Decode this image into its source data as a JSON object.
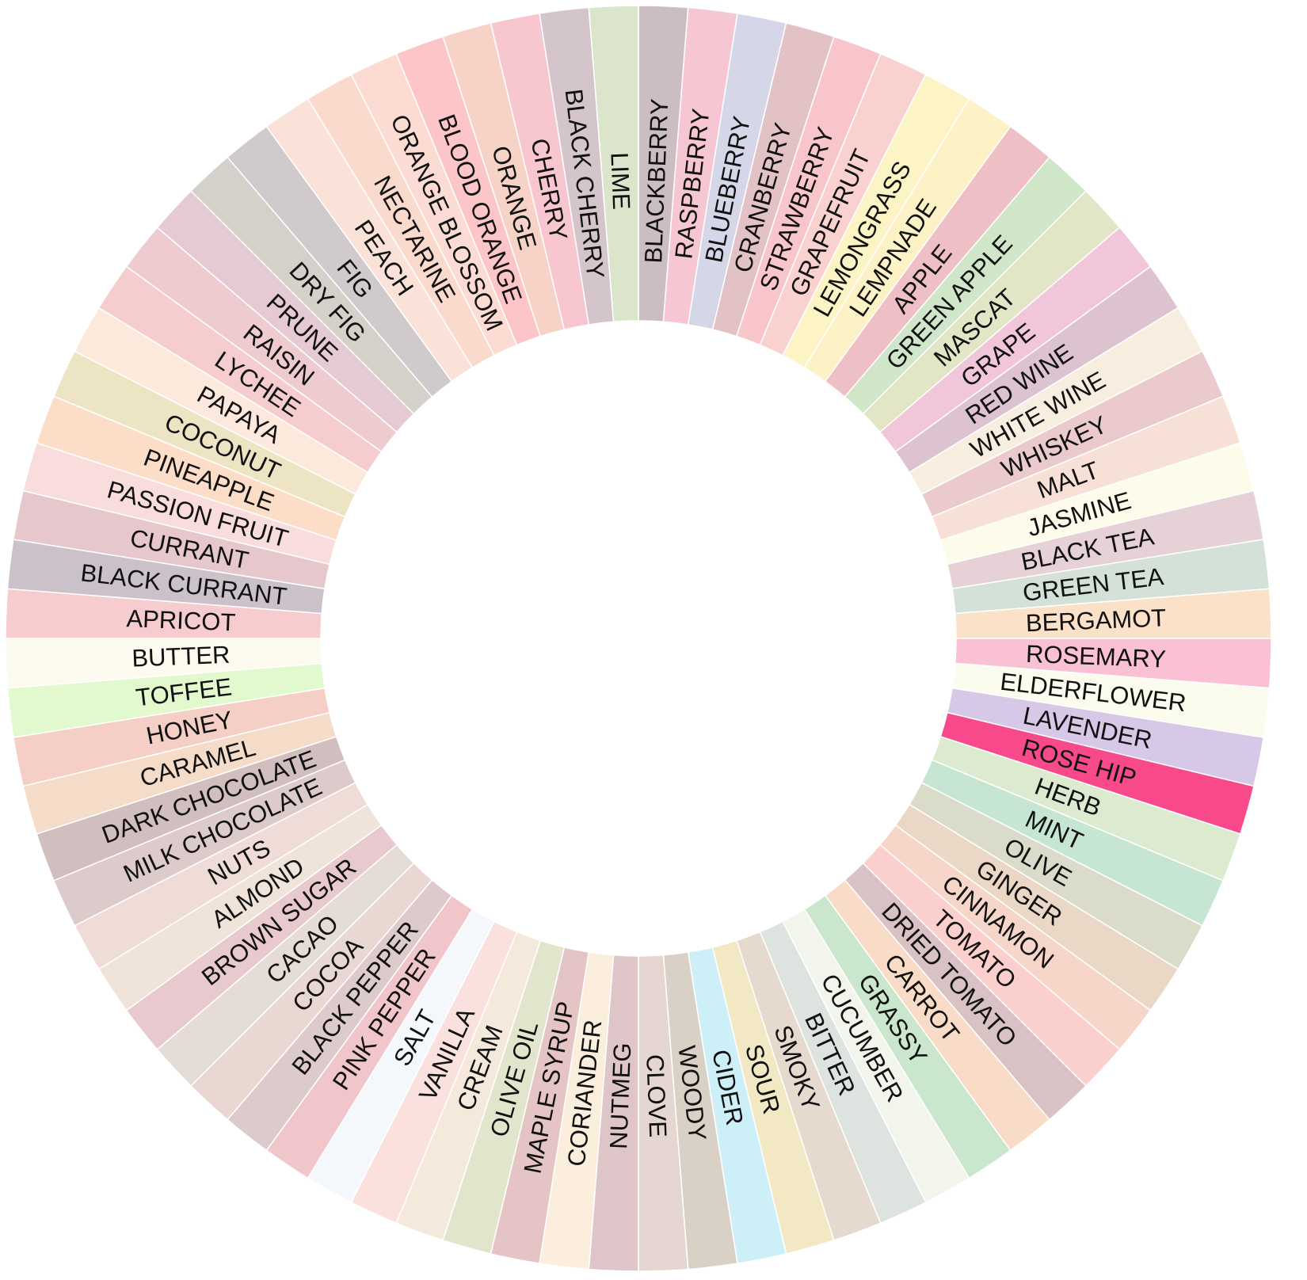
{
  "wheel": {
    "title": "",
    "segments": [
      {
        "label": "BLACKBERRY",
        "color": "#cbbdc2"
      },
      {
        "label": "RASPBERRY",
        "color": "#f6c6d3"
      },
      {
        "label": "BLUEBERRY",
        "color": "#d6d6e9"
      },
      {
        "label": "CRANBERRY",
        "color": "#e3c2c6"
      },
      {
        "label": "STRAWBERRY",
        "color": "#f8c5ca"
      },
      {
        "label": "GRAPEFRUIT",
        "color": "#f9d1ce"
      },
      {
        "label": "LEMONGRASS",
        "color": "#fcf4c4"
      },
      {
        "label": "LEMPNADE",
        "color": "#fdf1c6"
      },
      {
        "label": "APPLE",
        "color": "#efbfc6"
      },
      {
        "label": "GREEN APPLE",
        "color": "#cfe6c8"
      },
      {
        "label": "MASCAT",
        "color": "#e3e6c6"
      },
      {
        "label": "GRAPE",
        "color": "#f1c5da"
      },
      {
        "label": "RED WINE",
        "color": "#ddc3cf"
      },
      {
        "label": "WHITE WINE",
        "color": "#f8eee0"
      },
      {
        "label": "WHISKEY",
        "color": "#ebcacd"
      },
      {
        "label": "MALT",
        "color": "#f7e1d7"
      },
      {
        "label": "JASMINE",
        "color": "#fdfbea"
      },
      {
        "label": "BLACK TEA",
        "color": "#e6d1d6"
      },
      {
        "label": "GREEN TEA",
        "color": "#d3e1d8"
      },
      {
        "label": "BERGAMOT",
        "color": "#fbe1c8"
      },
      {
        "label": "ROSEMARY",
        "color": "#fac0d3"
      },
      {
        "label": "ELDERFLOWER",
        "color": "#fbfbee"
      },
      {
        "label": "LAVENDER",
        "color": "#d8c8e7"
      },
      {
        "label": "ROSE HIP",
        "color": "#f84a8b"
      },
      {
        "label": "HERB",
        "color": "#dcebcf"
      },
      {
        "label": "MINT",
        "color": "#c6e6d3"
      },
      {
        "label": "OLIVE",
        "color": "#dbdbc9"
      },
      {
        "label": "GINGER",
        "color": "#ead7c6"
      },
      {
        "label": "CINNAMON",
        "color": "#f7d6ca"
      },
      {
        "label": "TOMATO",
        "color": "#fbcfcc"
      },
      {
        "label": "DRIED TOMATO",
        "color": "#d8c2c3"
      },
      {
        "label": "CARROT",
        "color": "#f8dcc7"
      },
      {
        "label": "GRASSY",
        "color": "#cae6cd"
      },
      {
        "label": "CUCUMBER",
        "color": "#f1f5ec"
      },
      {
        "label": "BITTER",
        "color": "#dde3df"
      },
      {
        "label": "SMOKY",
        "color": "#e6d9cd"
      },
      {
        "label": "SOUR",
        "color": "#f2e8c4"
      },
      {
        "label": "CIDER",
        "color": "#cdeff7"
      },
      {
        "label": "WOODY",
        "color": "#d9d0c6"
      },
      {
        "label": "CLOVE",
        "color": "#e6d6d1"
      },
      {
        "label": "NUTMEG",
        "color": "#dec5c8"
      },
      {
        "label": "CORIANDER",
        "color": "#fbeedc"
      },
      {
        "label": "MAPLE SYRUP",
        "color": "#e4c4c4"
      },
      {
        "label": "OLIVE OIL",
        "color": "#e1e5cc"
      },
      {
        "label": "CREAM",
        "color": "#f5e9dc"
      },
      {
        "label": "VANILLA",
        "color": "#fbe1dd"
      },
      {
        "label": "SALT",
        "color": "#f4f8fc"
      },
      {
        "label": "PINK PEPPER",
        "color": "#f0c6cb"
      },
      {
        "label": "BLACK PEPPER",
        "color": "#dccacc"
      },
      {
        "label": "COCOA",
        "color": "#e8d8d1"
      },
      {
        "label": "CACAO",
        "color": "#e6dcd6"
      },
      {
        "label": "BROWN SUGAR",
        "color": "#e8c9cd"
      },
      {
        "label": "ALMOND",
        "color": "#efe3da"
      },
      {
        "label": "NUTS",
        "color": "#efdcd6"
      },
      {
        "label": "MILK CHOCOLATE",
        "color": "#ddcbcb"
      },
      {
        "label": "DARK CHOCOLATE",
        "color": "#d1bfc0"
      },
      {
        "label": "CARAMEL",
        "color": "#f5dcc9"
      },
      {
        "label": "HONEY",
        "color": "#f5cfc6"
      },
      {
        "label": "TOFFEE",
        "color": "#e2f9cd"
      },
      {
        "label": "BUTTER",
        "color": "#fdfbef"
      },
      {
        "label": "APRICOT",
        "color": "#f6cccf"
      },
      {
        "label": "BLACK CURRANT",
        "color": "#cac2c8"
      },
      {
        "label": "CURRANT",
        "color": "#e6c7cb"
      },
      {
        "label": "PASSION FRUIT",
        "color": "#f9dcdc"
      },
      {
        "label": "PINEAPPLE",
        "color": "#fcdec8"
      },
      {
        "label": "COCONUT",
        "color": "#ede4c4"
      },
      {
        "label": "PAPAYA",
        "color": "#fde9dc"
      },
      {
        "label": "LYCHEE",
        "color": "#f6cdce"
      },
      {
        "label": "RAISIN",
        "color": "#edcbcf"
      },
      {
        "label": "PRUNE",
        "color": "#e6cad3"
      },
      {
        "label": "DRY FIG",
        "color": "#d4d1ca"
      },
      {
        "label": "FIG",
        "color": "#d1cacd"
      },
      {
        "label": "PEACH",
        "color": "#fbe2d8"
      },
      {
        "label": "NECTARINE",
        "color": "#fbdace"
      },
      {
        "label": "ORANGE BLOSSOM",
        "color": "#fcdcd2"
      },
      {
        "label": "BLOOD ORANGE",
        "color": "#fcc5c8"
      },
      {
        "label": "ORANGE",
        "color": "#f6d3c6"
      },
      {
        "label": "CHERRY",
        "color": "#f7c6cf"
      },
      {
        "label": "BLACK CHERRY",
        "color": "#d3c5c9"
      },
      {
        "label": "LIME",
        "color": "#dbe5cc"
      }
    ]
  }
}
